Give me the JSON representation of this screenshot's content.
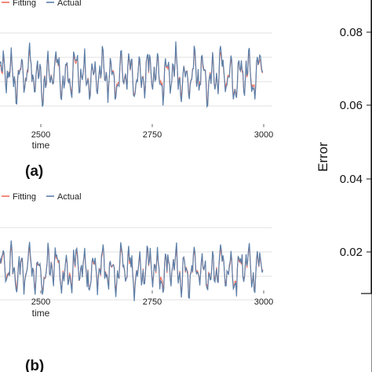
{
  "chart_data": [
    {
      "type": "line",
      "panel_label": "(a)",
      "xlabel": "time",
      "x_ticks": [
        "2500",
        "2750",
        "3000"
      ],
      "x_range": [
        2360,
        3010
      ],
      "y_range": [
        -2.6,
        2.6
      ],
      "grid": true,
      "legend_position": "top-left",
      "colors": {
        "Fitting": "#f26d5b",
        "Actual": "#5b7fa8"
      },
      "series": [
        {
          "name": "Fitting",
          "values": []
        },
        {
          "name": "Actual",
          "values": []
        }
      ]
    },
    {
      "type": "line",
      "panel_label": "(b)",
      "xlabel": "time",
      "x_ticks": [
        "2500",
        "2750",
        "3000"
      ],
      "x_range": [
        2360,
        3010
      ],
      "y_range": [
        -2.6,
        2.6
      ],
      "grid": true,
      "legend_position": "top-left",
      "colors": {
        "Fitting": "#f26d5b",
        "Actual": "#5b7fa8"
      },
      "series": [
        {
          "name": "Fitting",
          "values": []
        },
        {
          "name": "Actual",
          "values": []
        }
      ]
    },
    {
      "type": "line",
      "ylabel": "Error",
      "y_ticks": [
        "0.02",
        "0.04",
        "0.06",
        "0.08"
      ],
      "y_range": [
        0.01,
        0.085
      ],
      "grid": false
    }
  ]
}
